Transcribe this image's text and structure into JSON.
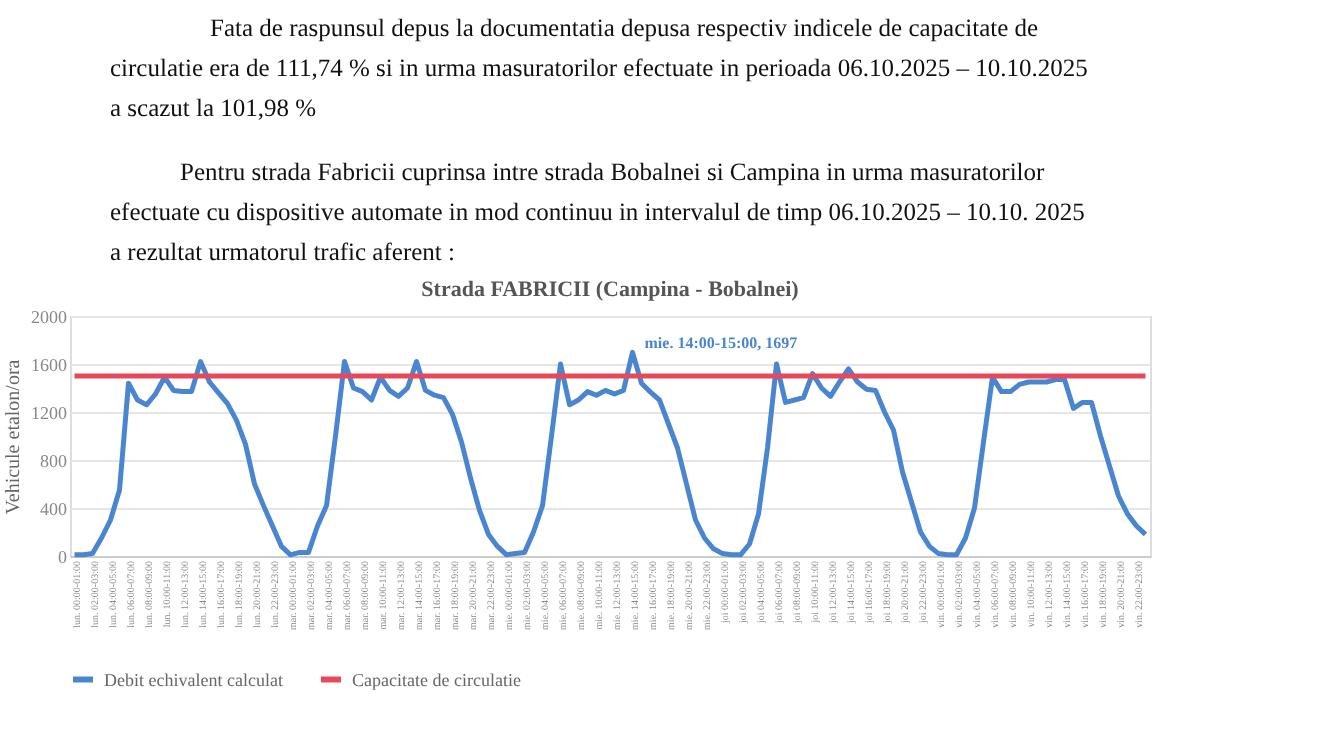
{
  "chart_data": {
    "type": "line",
    "title": "Strada FABRICII (Campina - Bobalnei)",
    "ylabel": "Vehicule etalon/ora",
    "categories": [
      "lun. 00:00-01:00",
      null,
      "lun. 02:00-03:00",
      null,
      "lun. 04:00-05:00",
      null,
      "lun. 06:00-07:00",
      null,
      "lun. 08:00-09:00",
      null,
      "lun. 10:00-11:00",
      null,
      "lun. 12:00-13:00",
      null,
      "lun. 14:00-15:00",
      null,
      "lun. 16:00-17:00",
      null,
      "lun. 18:00-19:00",
      null,
      "lun. 20:00-21:00",
      null,
      "lun. 22:00-23:00",
      null,
      "mar. 00:00-01:00",
      null,
      "mar. 02:00-03:00",
      null,
      "mar. 04:00-05:00",
      null,
      "mar. 06:00-07:00",
      null,
      "mar. 08:00-09:00",
      null,
      "mar. 10:00-11:00",
      null,
      "mar. 12:00-13:00",
      null,
      "mar. 14:00-15:00",
      null,
      "mar. 16:00-17:00",
      null,
      "mar. 18:00-19:00",
      null,
      "mar. 20:00-21:00",
      null,
      "mar. 22:00-23:00",
      null,
      "mie. 00:00-01:00",
      null,
      "mie. 02:00-03:00",
      null,
      "mie. 04:00-05:00",
      null,
      "mie. 06:00-07:00",
      null,
      "mie. 08:00-09:00",
      null,
      "mie. 10:00-11:00",
      null,
      "mie. 12:00-13:00",
      null,
      "mie. 14:00-15:00",
      null,
      "mie. 16:00-17:00",
      null,
      "mie. 18:00-19:00",
      null,
      "mie. 20:00-21:00",
      null,
      "mie. 22:00-23:00",
      null,
      "joi 00:00-01:00",
      null,
      "joi 02:00-03:00",
      null,
      "joi 04:00-05:00",
      null,
      "joi 06:00-07:00",
      null,
      "joi 08:00-09:00",
      null,
      "joi 10:00-11:00",
      null,
      "joi 12:00-13:00",
      null,
      "joi 14:00-15:00",
      null,
      "joi 16:00-17:00",
      null,
      "joi 18:00-19:00",
      null,
      "joi 20:00-21:00",
      null,
      "joi 22:00-23:00",
      null,
      "vin. 00:00-01:00",
      null,
      "vin. 02:00-03:00",
      null,
      "vin. 04:00-05:00",
      null,
      "vin. 06:00-07:00",
      null,
      "vin. 08:00-09:00",
      null,
      "vin. 10:00-11:00",
      null,
      "vin. 12:00-13:00",
      null,
      "vin. 14:00-15:00",
      null,
      "vin. 16:00-17:00",
      null,
      "vin. 18:00-19:00",
      null,
      "vin. 20:00-21:00",
      null,
      "vin. 22:00-23:00",
      null
    ],
    "series": [
      {
        "name": "Debit echivalent  calculat",
        "color": "#4a86d0",
        "values": [
          10,
          10,
          20,
          150,
          300,
          550,
          1440,
          1300,
          1260,
          1350,
          1490,
          1380,
          1370,
          1370,
          1620,
          1450,
          1360,
          1270,
          1130,
          930,
          600,
          420,
          250,
          80,
          10,
          30,
          30,
          250,
          420,
          1000,
          1620,
          1400,
          1370,
          1300,
          1490,
          1380,
          1330,
          1400,
          1620,
          1380,
          1340,
          1320,
          1180,
          950,
          650,
          380,
          180,
          80,
          10,
          20,
          30,
          200,
          420,
          1000,
          1600,
          1260,
          1300,
          1370,
          1340,
          1380,
          1350,
          1380,
          1697,
          1440,
          1365,
          1300,
          1100,
          900,
          600,
          300,
          150,
          60,
          20,
          10,
          10,
          100,
          350,
          900,
          1600,
          1280,
          1300,
          1320,
          1520,
          1400,
          1330,
          1450,
          1560,
          1450,
          1390,
          1380,
          1200,
          1050,
          700,
          450,
          200,
          80,
          20,
          10,
          10,
          150,
          400,
          950,
          1490,
          1370,
          1370,
          1430,
          1450,
          1450,
          1450,
          1470,
          1470,
          1230,
          1280,
          1280,
          1000,
          750,
          500,
          350,
          250,
          180
        ]
      },
      {
        "name": "Capacitate de  circulatie",
        "color": "#e8485a",
        "values": [
          1500,
          1500,
          1500,
          1500,
          1500,
          1500,
          1500,
          1500,
          1500,
          1500,
          1500,
          1500,
          1500,
          1500,
          1500,
          1500,
          1500,
          1500,
          1500,
          1500,
          1500,
          1500,
          1500,
          1500,
          1500,
          1500,
          1500,
          1500,
          1500,
          1500,
          1500,
          1500,
          1500,
          1500,
          1500,
          1500,
          1500,
          1500,
          1500,
          1500,
          1500,
          1500,
          1500,
          1500,
          1500,
          1500,
          1500,
          1500,
          1500,
          1500,
          1500,
          1500,
          1500,
          1500,
          1500,
          1500,
          1500,
          1500,
          1500,
          1500,
          1500,
          1500,
          1500,
          1500,
          1500,
          1500,
          1500,
          1500,
          1500,
          1500,
          1500,
          1500,
          1500,
          1500,
          1500,
          1500,
          1500,
          1500,
          1500,
          1500,
          1500,
          1500,
          1500,
          1500,
          1500,
          1500,
          1500,
          1500,
          1500,
          1500,
          1500,
          1500,
          1500,
          1500,
          1500,
          1500,
          1500,
          1500,
          1500,
          1500,
          1500,
          1500,
          1500,
          1500,
          1500,
          1500,
          1500,
          1500,
          1500,
          1500,
          1500,
          1500,
          1500,
          1500,
          1500,
          1500,
          1500,
          1500,
          1500,
          1500
        ]
      }
    ],
    "ylim": [
      0,
      2000
    ],
    "yticks": [
      0,
      400,
      800,
      1200,
      1600,
      2000
    ],
    "grid": "y",
    "legend": "bottom",
    "marker": "none",
    "line_style": "solid",
    "annotations": [
      "Fata de raspunsul depus la documentatia depusa  respectiv indicele de capacitate de",
      "circulatie era de 111,74 % si in urma masuratorilor efectuate in perioada 06.10.2025 – 10.10.2025",
      "a scazut la 101,98 %",
      "Pentru strada Fabricii cuprinsa intre strada Bobalnei si Campina in urma masuratorilor",
      "efectuate cu dispositive automate in mod continuu in intervalul de timp 06.10.2025 – 10.10. 2025",
      "a rezultat urmatorul trafic aferent :",
      {
        "text": "mie. 14:00-15:00, 1697",
        "x": "mie. 14:00-15:00",
        "y": 1697
      }
    ]
  }
}
